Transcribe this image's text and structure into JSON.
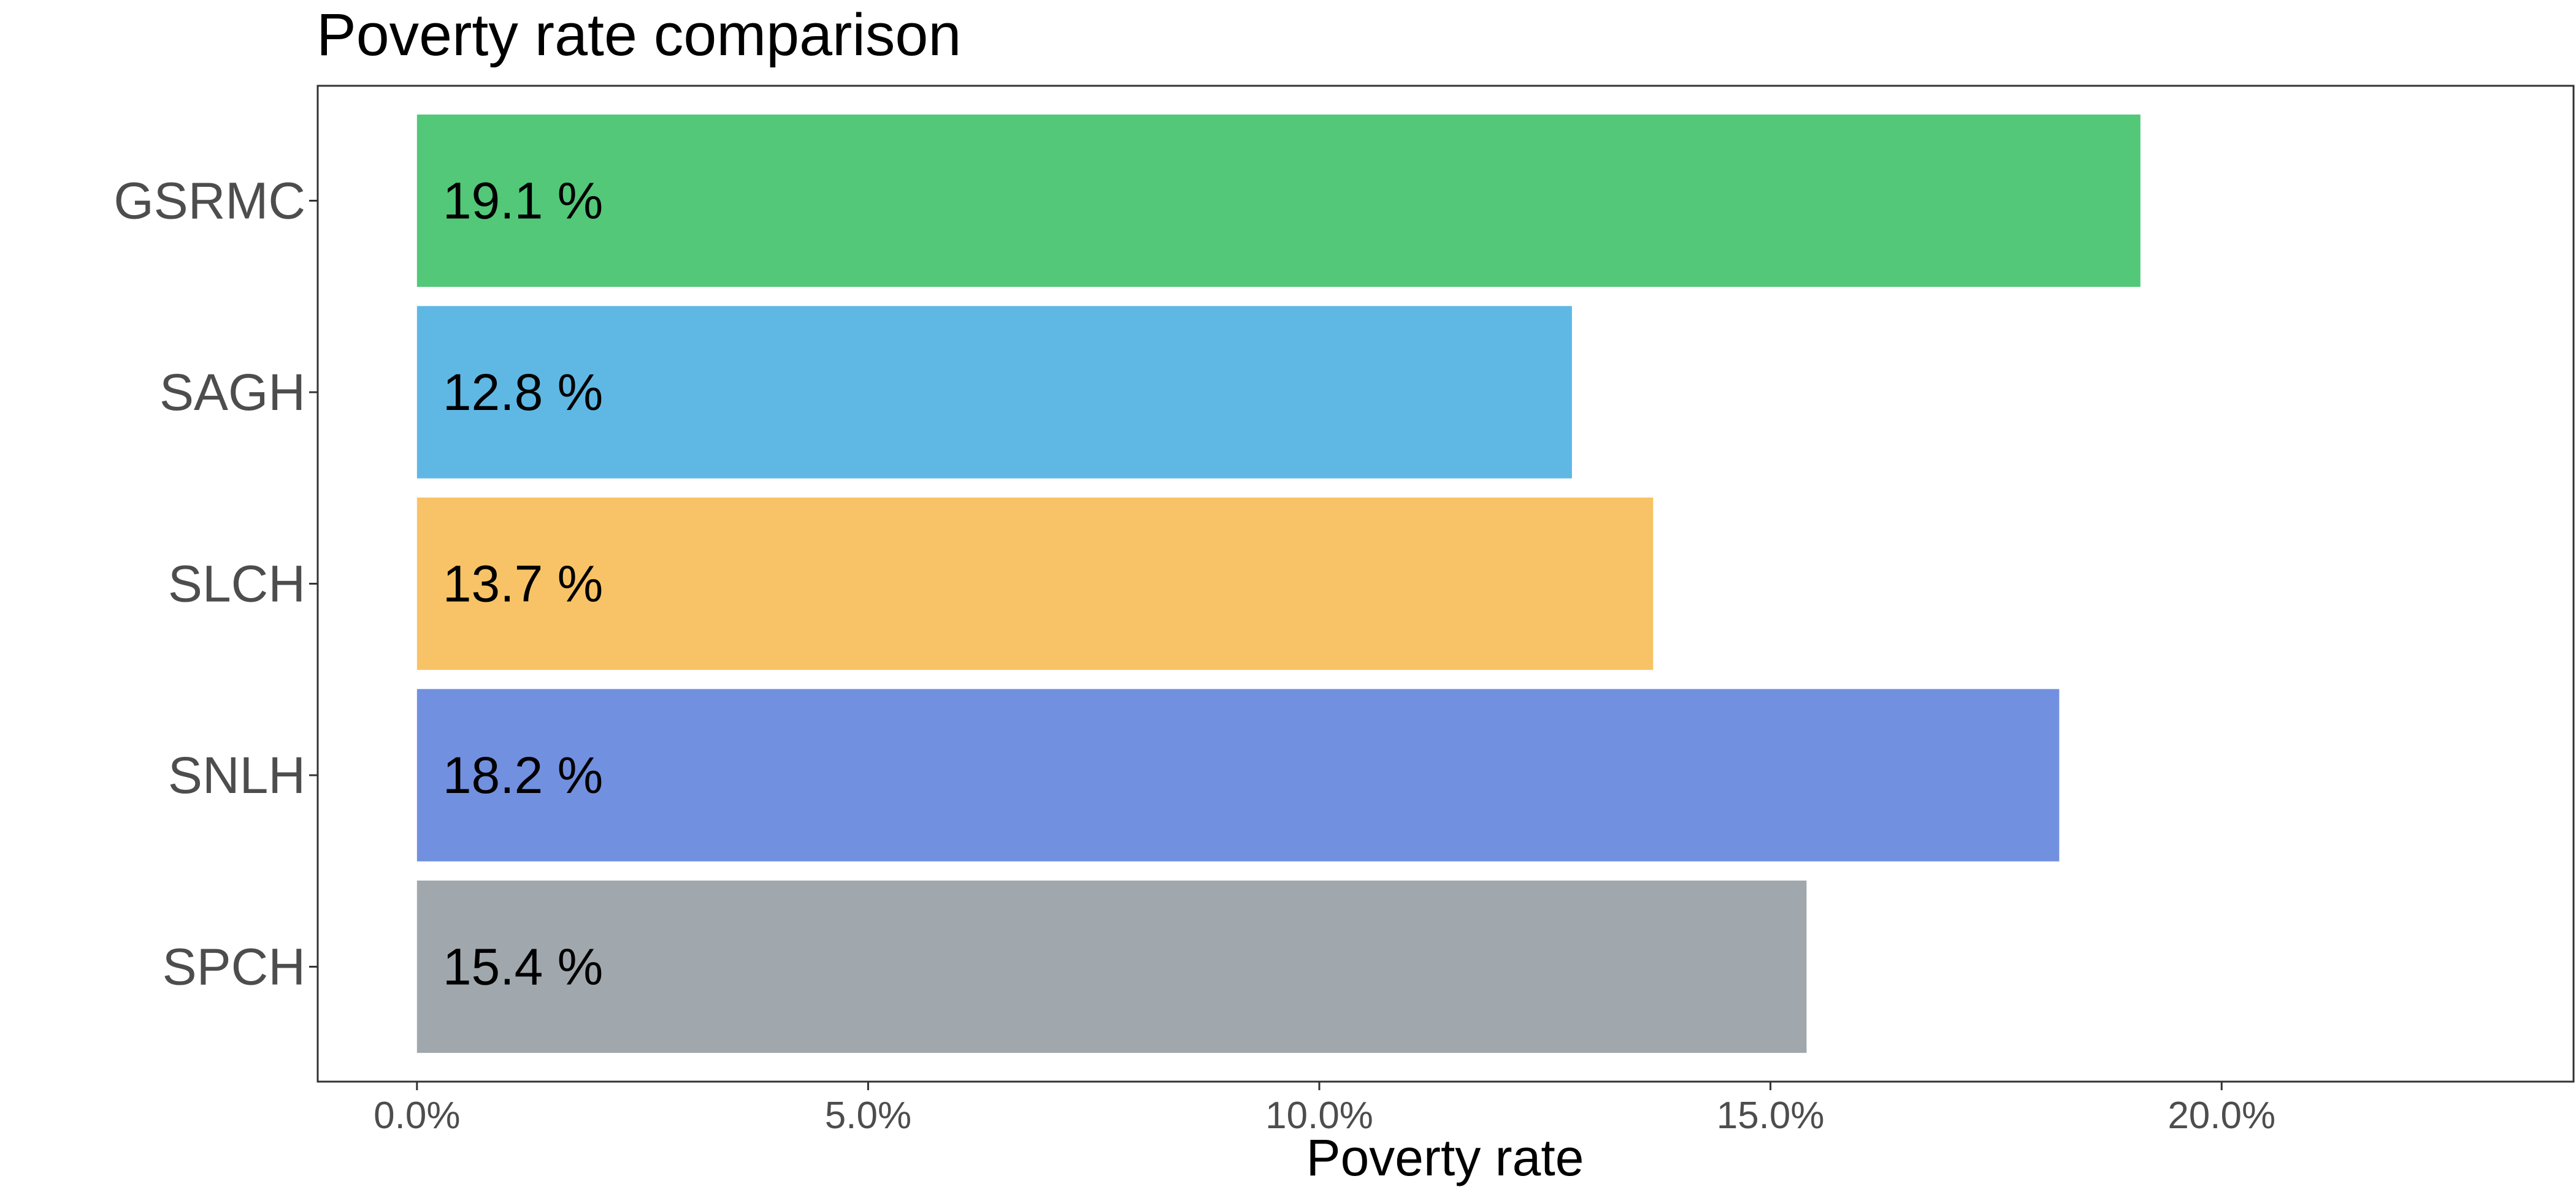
{
  "chart_data": {
    "type": "bar",
    "orientation": "horizontal",
    "title": "Poverty rate comparison",
    "xlabel": "Poverty rate",
    "ylabel": "",
    "categories": [
      "GSRMC",
      "SAGH",
      "SLCH",
      "SNLH",
      "SPCH"
    ],
    "values": [
      19.1,
      12.8,
      13.7,
      18.2,
      15.4
    ],
    "data_labels": [
      "19.1 %",
      "12.8 %",
      "13.7 %",
      "18.2 %",
      "15.4 %"
    ],
    "colors": [
      "#52c878",
      "#5fb8e4",
      "#f8c366",
      "#7290e0",
      "#a0a8ad"
    ],
    "x_ticks": [
      0,
      5,
      10,
      15,
      20
    ],
    "x_tick_labels": [
      "0.0%",
      "5.0%",
      "10.0%",
      "15.0%",
      "20.0%"
    ],
    "xlim": [
      -1.1,
      23.9
    ],
    "grid": false,
    "legend": "none"
  }
}
